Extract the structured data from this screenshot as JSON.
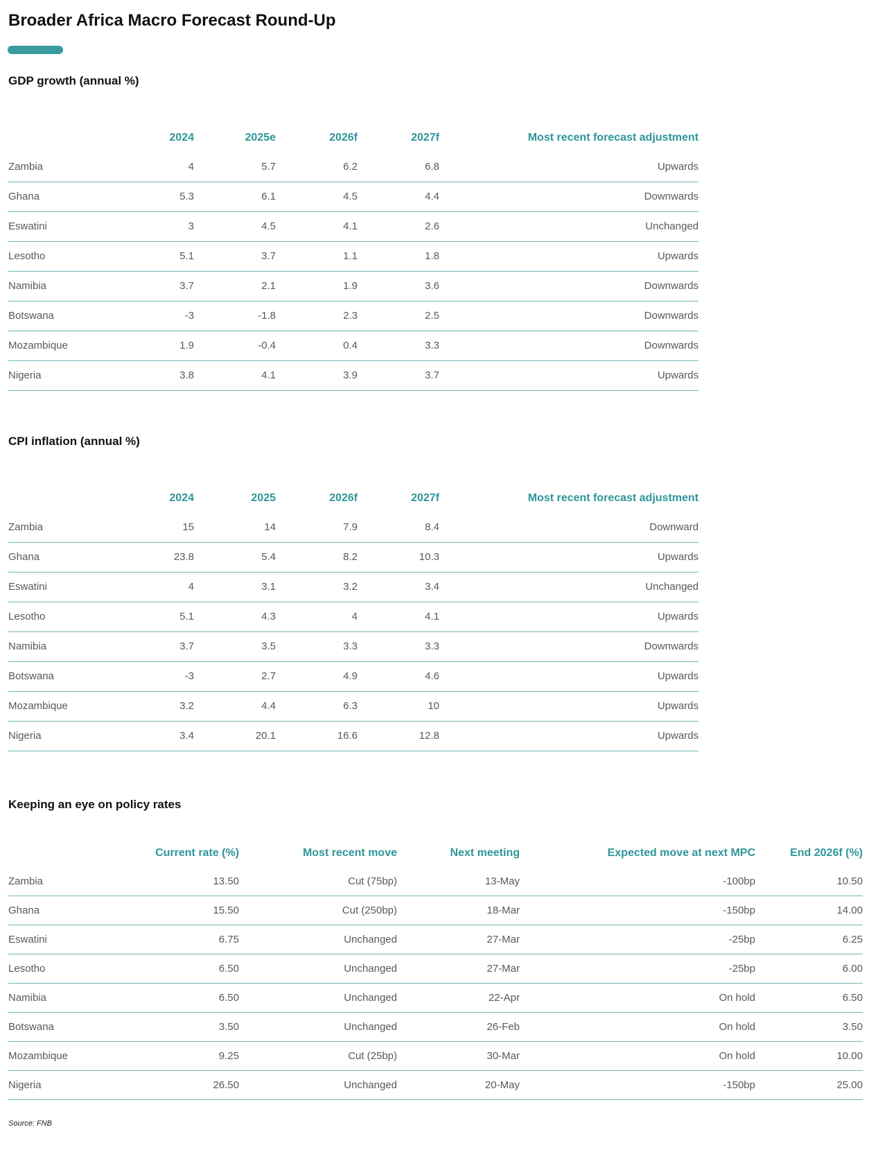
{
  "page": {
    "title": "Broader Africa Macro Forecast Round-Up",
    "source_note": "Source: FNB"
  },
  "colors": {
    "accent_teal_text": "#2e969a",
    "title_bar_teal": "#389b9d",
    "row_line_teal": "#6fb5b7",
    "body_text_gray": "#58595b",
    "heading_black": "#111111"
  },
  "sections": [
    {
      "heading": "GDP growth (annual %)",
      "columns": [
        "",
        "2024",
        "2025e",
        "2026f",
        "2027f",
        "Most recent forecast adjustment"
      ],
      "rows": [
        [
          "Zambia",
          "4",
          "5.7",
          "6.2",
          "6.8",
          "Upwards"
        ],
        [
          "Ghana",
          "5.3",
          "6.1",
          "4.5",
          "4.4",
          "Downwards"
        ],
        [
          "Eswatini",
          "3",
          "4.5",
          "4.1",
          "2.6",
          "Unchanged"
        ],
        [
          "Lesotho",
          "5.1",
          "3.7",
          "1.1",
          "1.8",
          "Upwards"
        ],
        [
          "Namibia",
          "3.7",
          "2.1",
          "1.9",
          "3.6",
          "Downwards"
        ],
        [
          "Botswana",
          "-3",
          "-1.8",
          "2.3",
          "2.5",
          "Downwards"
        ],
        [
          "Mozambique",
          "1.9",
          "-0.4",
          "0.4",
          "3.3",
          "Downwards"
        ],
        [
          "Nigeria",
          "3.8",
          "4.1",
          "3.9",
          "3.7",
          "Upwards"
        ]
      ]
    },
    {
      "heading": "CPI inflation (annual %)",
      "columns": [
        "",
        "2024",
        "2025",
        "2026f",
        "2027f",
        "Most recent forecast adjustment"
      ],
      "rows": [
        [
          "Zambia",
          "15",
          "14",
          "7.9",
          "8.4",
          "Downward"
        ],
        [
          "Ghana",
          "23.8",
          "5.4",
          "8.2",
          "10.3",
          "Upwards"
        ],
        [
          "Eswatini",
          "4",
          "3.1",
          "3.2",
          "3.4",
          "Unchanged"
        ],
        [
          "Lesotho",
          "5.1",
          "4.3",
          "4",
          "4.1",
          "Upwards"
        ],
        [
          "Namibia",
          "3.7",
          "3.5",
          "3.3",
          "3.3",
          "Downwards"
        ],
        [
          "Botswana",
          "-3",
          "2.7",
          "4.9",
          "4.6",
          "Upwards"
        ],
        [
          "Mozambique",
          "3.2",
          "4.4",
          "6.3",
          "10",
          "Upwards"
        ],
        [
          "Nigeria",
          "3.4",
          "20.1",
          "16.6",
          "12.8",
          "Upwards"
        ]
      ]
    },
    {
      "heading": "Keeping an eye on policy rates",
      "columns": [
        "",
        "Current rate (%)",
        "Most recent move",
        "Next meeting",
        "Expected move at next MPC",
        "End 2026f (%)"
      ],
      "rows": [
        [
          "Zambia",
          "13.50",
          "Cut (75bp)",
          "13-May",
          "-100bp",
          "10.50"
        ],
        [
          "Ghana",
          "15.50",
          "Cut (250bp)",
          "18-Mar",
          "-150bp",
          "14.00"
        ],
        [
          "Eswatini",
          "6.75",
          "Unchanged",
          "27-Mar",
          "-25bp",
          "6.25"
        ],
        [
          "Lesotho",
          "6.50",
          "Unchanged",
          "27-Mar",
          "-25bp",
          "6.00"
        ],
        [
          "Namibia",
          "6.50",
          "Unchanged",
          "22-Apr",
          "On hold",
          "6.50"
        ],
        [
          "Botswana",
          "3.50",
          "Unchanged",
          "26-Feb",
          "On hold",
          "3.50"
        ],
        [
          "Mozambique",
          "9.25",
          "Cut (25bp)",
          "30-Mar",
          "On hold",
          "10.00"
        ],
        [
          "Nigeria",
          "26.50",
          "Unchanged",
          "20-May",
          "-150bp",
          "25.00"
        ]
      ]
    }
  ]
}
